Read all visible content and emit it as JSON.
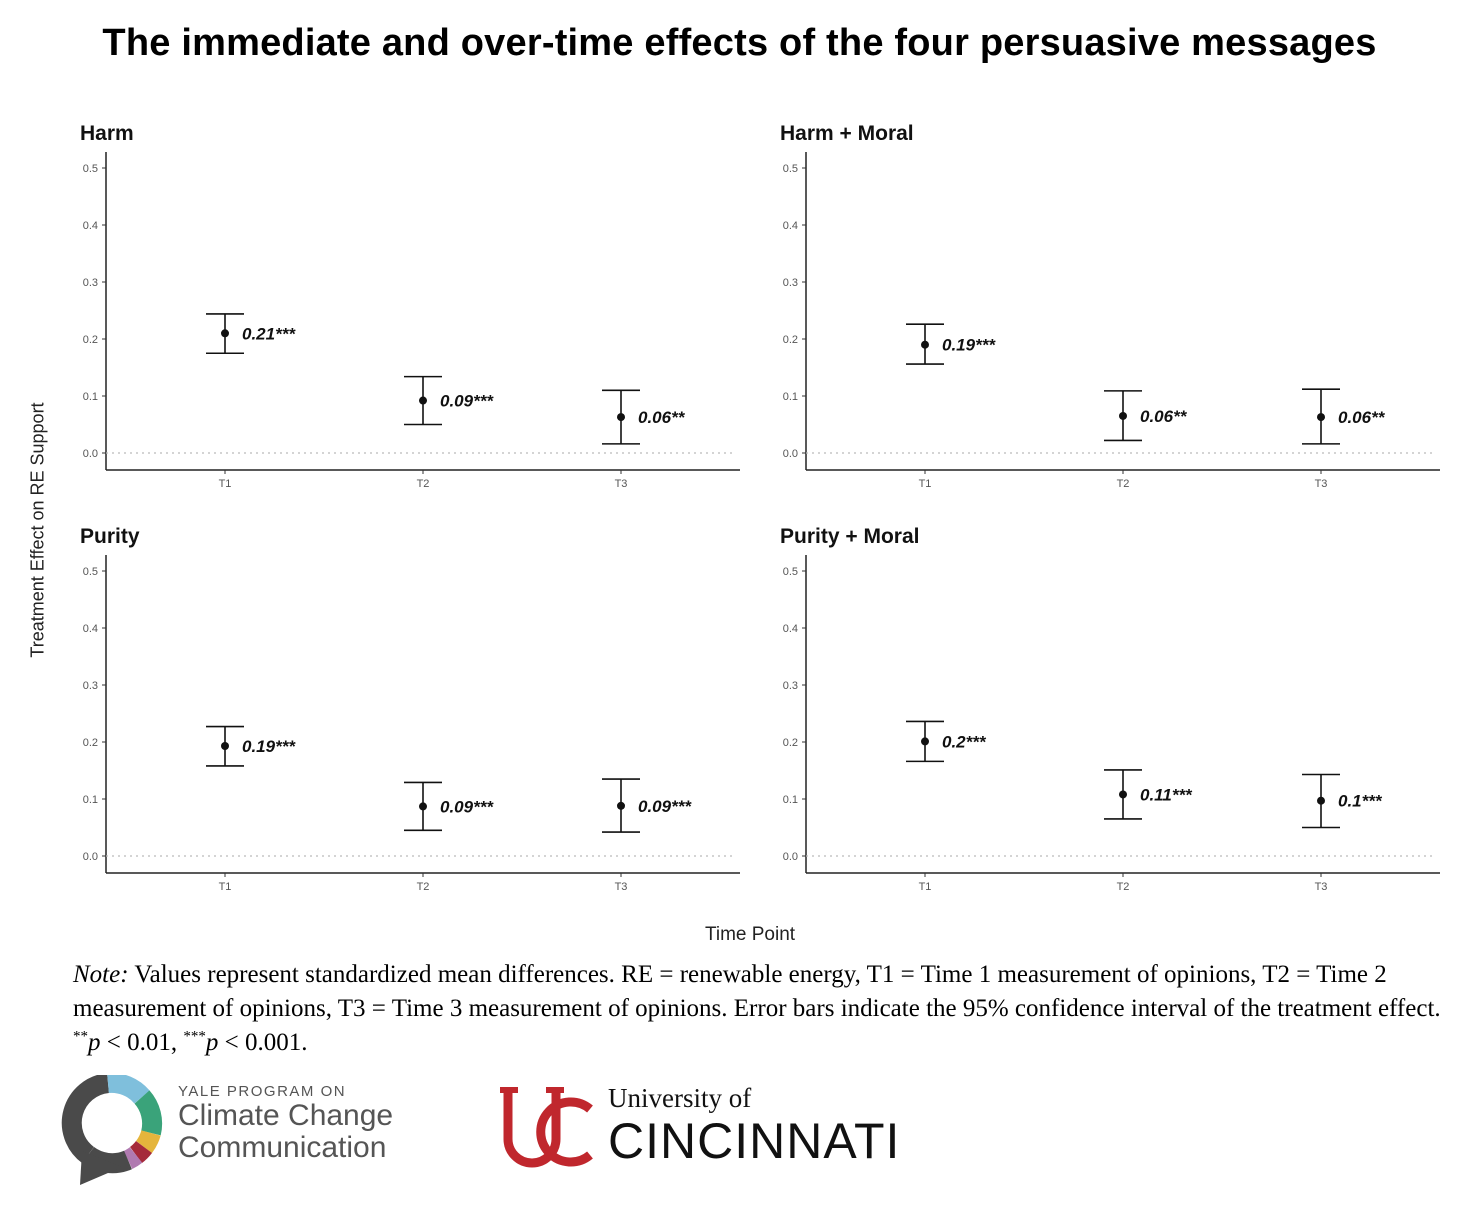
{
  "title": "The immediate and over-time effects of the four persuasive messages",
  "y_axis_label": "Treatment Effect on RE Support",
  "x_axis_label": "Time Point",
  "note": {
    "lead": "Note:",
    "text": " Values represent standardized mean differences. RE = renewable energy, T1 = Time 1 measurement of opinions, T2 = Time 2 measurement of opinions, T3 = Time 3 measurement of opinions. Error bars indicate the 95% confidence interval of the treatment effect. ",
    "sig1_stars": "**",
    "sig1_text": " < 0.01, ",
    "sig2_stars": "***",
    "sig2_text": " < 0.001.",
    "p": "p"
  },
  "logos": {
    "yale_small": "YALE PROGRAM ON",
    "yale_line1": "Climate Change",
    "yale_line2": "Communication",
    "uc_small": "University of",
    "uc_big": "CINCINNATI"
  },
  "colors": {
    "yale_ring": [
      "#4a4a4a",
      "#7fbfdc",
      "#3aa37a",
      "#e5b53c",
      "#a52a3a",
      "#b07ab0"
    ],
    "uc_red": "#c0272d"
  },
  "chart_data": [
    {
      "type": "scatter",
      "title": "Harm",
      "categories": [
        "T1",
        "T2",
        "T3"
      ],
      "values": [
        0.21,
        0.092,
        0.063
      ],
      "ci_low": [
        0.175,
        0.05,
        0.016
      ],
      "ci_high": [
        0.244,
        0.134,
        0.11
      ],
      "labels": [
        "0.21***",
        "0.09***",
        "0.06**"
      ],
      "ylim": [
        0,
        0.5
      ],
      "yticks": [
        "0.0",
        "0.1",
        "0.2",
        "0.3",
        "0.4",
        "0.5"
      ],
      "reference_line": 0
    },
    {
      "type": "scatter",
      "title": "Harm + Moral",
      "categories": [
        "T1",
        "T2",
        "T3"
      ],
      "values": [
        0.19,
        0.065,
        0.063
      ],
      "ci_low": [
        0.156,
        0.022,
        0.016
      ],
      "ci_high": [
        0.226,
        0.109,
        0.112
      ],
      "labels": [
        "0.19***",
        "0.06**",
        "0.06**"
      ],
      "ylim": [
        0,
        0.5
      ],
      "yticks": [
        "0.0",
        "0.1",
        "0.2",
        "0.3",
        "0.4",
        "0.5"
      ],
      "reference_line": 0
    },
    {
      "type": "scatter",
      "title": "Purity",
      "categories": [
        "T1",
        "T2",
        "T3"
      ],
      "values": [
        0.193,
        0.087,
        0.088
      ],
      "ci_low": [
        0.158,
        0.045,
        0.042
      ],
      "ci_high": [
        0.227,
        0.129,
        0.135
      ],
      "labels": [
        "0.19***",
        "0.09***",
        "0.09***"
      ],
      "ylim": [
        0,
        0.5
      ],
      "yticks": [
        "0.0",
        "0.1",
        "0.2",
        "0.3",
        "0.4",
        "0.5"
      ],
      "reference_line": 0
    },
    {
      "type": "scatter",
      "title": "Purity + Moral",
      "categories": [
        "T1",
        "T2",
        "T3"
      ],
      "values": [
        0.201,
        0.108,
        0.097
      ],
      "ci_low": [
        0.166,
        0.065,
        0.05
      ],
      "ci_high": [
        0.236,
        0.151,
        0.143
      ],
      "labels": [
        "0.2***",
        "0.11***",
        "0.1***"
      ],
      "ylim": [
        0,
        0.5
      ],
      "yticks": [
        "0.0",
        "0.1",
        "0.2",
        "0.3",
        "0.4",
        "0.5"
      ],
      "reference_line": 0
    }
  ]
}
